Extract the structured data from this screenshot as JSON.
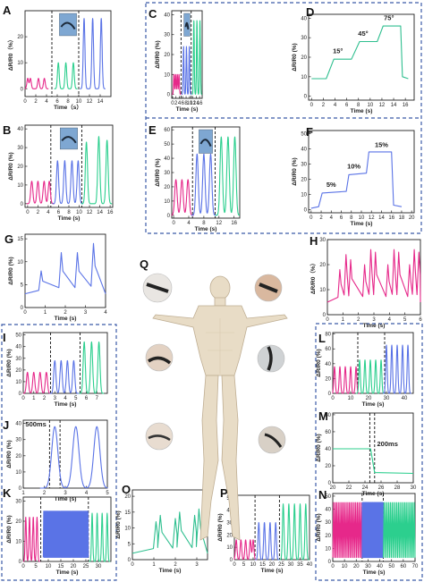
{
  "colors": {
    "pink": "#e6288a",
    "green": "#2ccf8e",
    "blue": "#5a73e6",
    "teal": "#2fbf8f",
    "border": "#3b5aa8"
  },
  "chart_data": [
    {
      "id": "A",
      "type": "line",
      "xlabel": "Time（s）",
      "ylabel": "ΔR/R0（%）",
      "xlim": [
        0,
        16
      ],
      "ylim": [
        -3,
        30
      ],
      "xticks": [
        0,
        2,
        4,
        6,
        8,
        10,
        12,
        14
      ],
      "yticks": [
        0,
        10,
        20
      ],
      "dividers": [
        5,
        10
      ],
      "inset": true,
      "series": [
        {
          "color": "#e6288a",
          "x": [
            0.5,
            1.0,
            2.5,
            3.6
          ],
          "y": [
            4,
            4,
            4,
            4
          ]
        },
        {
          "color": "#2ccf8e",
          "x": [
            6.2,
            7.6,
            9.0
          ],
          "y": [
            10,
            10,
            10
          ]
        },
        {
          "color": "#5a73e6",
          "x": [
            11.0,
            12.6,
            14.2
          ],
          "y": [
            27,
            27,
            27
          ]
        }
      ]
    },
    {
      "id": "B",
      "type": "line",
      "xlabel": "Time (s)",
      "ylabel": "ΔR/R0 (%)",
      "xlim": [
        -0.5,
        16.5
      ],
      "ylim": [
        -2,
        42
      ],
      "xticks": [
        0,
        2,
        4,
        6,
        8,
        10,
        12,
        14,
        16
      ],
      "yticks": [
        0,
        10,
        20,
        30,
        40
      ],
      "dividers": [
        4.5,
        10.5
      ],
      "inset": true,
      "series": [
        {
          "color": "#e6288a",
          "x": [
            0.8,
            2.0,
            3.2,
            4.2
          ],
          "y": [
            12,
            12,
            12,
            12
          ]
        },
        {
          "color": "#5a73e6",
          "x": [
            5.8,
            7.2,
            8.6,
            9.8
          ],
          "y": [
            23,
            23,
            23,
            23
          ]
        },
        {
          "color": "#2ccf8e",
          "x": [
            11.4,
            13.8,
            15.4
          ],
          "y": [
            33,
            36,
            34
          ]
        }
      ]
    },
    {
      "id": "C",
      "type": "line",
      "xlabel": "Time (s)",
      "ylabel": "ΔR/R0 (%)",
      "xlim": [
        -0.5,
        17.5
      ],
      "ylim": [
        -2,
        42
      ],
      "xticks": [
        0,
        2,
        4,
        6,
        8,
        10,
        12,
        14,
        16
      ],
      "yticks": [
        0,
        10,
        20,
        30,
        40
      ],
      "dividers": [
        5,
        11
      ],
      "inset": true,
      "series": [
        {
          "color": "#e6288a",
          "x": [
            0.8,
            1.8,
            2.8,
            3.8
          ],
          "y": [
            10,
            10,
            10,
            10
          ]
        },
        {
          "color": "#5a73e6",
          "x": [
            6.5,
            8.2,
            9.9
          ],
          "y": [
            24,
            24,
            24
          ]
        },
        {
          "color": "#2ccf8e",
          "x": [
            12.6,
            14.4,
            16.2
          ],
          "y": [
            37,
            37,
            37
          ]
        }
      ]
    },
    {
      "id": "D",
      "type": "line",
      "xlabel": "Time (s)",
      "ylabel": "ΔR/R0 (%)",
      "xlim": [
        -0.5,
        17.5
      ],
      "ylim": [
        -2,
        42
      ],
      "xticks": [
        0,
        2,
        4,
        6,
        8,
        10,
        12,
        14,
        16
      ],
      "yticks": [
        0,
        10,
        20,
        30,
        40
      ],
      "annotations": [
        "15°",
        "45°",
        "75°"
      ],
      "series": [
        {
          "color": "#2fbf8f",
          "x": [
            0,
            2.5,
            3.8,
            6.8,
            8.2,
            11.2,
            12.2,
            15.2,
            15.5,
            16.5
          ],
          "y": [
            9,
            9,
            19,
            19,
            28,
            28,
            36,
            36,
            10,
            9
          ]
        }
      ]
    },
    {
      "id": "E",
      "type": "line",
      "xlabel": "Time (s)",
      "ylabel": "ΔR/R0 (%)",
      "xlim": [
        -0.5,
        17.5
      ],
      "ylim": [
        -2,
        62
      ],
      "xticks": [
        0,
        4,
        8,
        12,
        16
      ],
      "yticks": [
        0,
        10,
        20,
        30,
        40,
        50,
        60
      ],
      "dividers": [
        5,
        11
      ],
      "inset": true,
      "series": [
        {
          "color": "#e6288a",
          "x": [
            0.6,
            2.2,
            3.8
          ],
          "y": [
            25,
            25,
            25
          ]
        },
        {
          "color": "#5a73e6",
          "x": [
            6.2,
            8.0,
            9.8
          ],
          "y": [
            43,
            43,
            43
          ]
        },
        {
          "color": "#2ccf8e",
          "x": [
            12.6,
            14.4,
            16.2
          ],
          "y": [
            55,
            55,
            55
          ]
        }
      ]
    },
    {
      "id": "F",
      "type": "line",
      "xlabel": "Time (s)",
      "ylabel": "ΔR/R0 (%)",
      "xlim": [
        -0.5,
        20.5
      ],
      "ylim": [
        -2,
        52
      ],
      "xticks": [
        0,
        2,
        4,
        6,
        8,
        10,
        12,
        14,
        16,
        18,
        20
      ],
      "yticks": [
        0,
        10,
        20,
        30,
        40,
        50
      ],
      "annotations": [
        "5%",
        "10%",
        "15%"
      ],
      "series": [
        {
          "color": "#5a73e6",
          "x": [
            0,
            1.5,
            2.2,
            7,
            7.5,
            11,
            11.5,
            16,
            16.4,
            18
          ],
          "y": [
            1,
            2,
            11,
            12,
            23,
            24,
            38,
            38,
            3,
            2
          ]
        }
      ]
    },
    {
      "id": "G",
      "type": "line",
      "xlabel": "Time (s)",
      "ylabel": "ΔR/R0 (%)",
      "xlim": [
        0,
        4
      ],
      "ylim": [
        0,
        16
      ],
      "xticks": [
        0,
        1,
        2,
        3,
        4
      ],
      "yticks": [
        0,
        5,
        10,
        15
      ],
      "series": [
        {
          "color": "#5a73e6",
          "x": [
            0.8,
            1.8,
            2.6,
            3.4
          ],
          "y": [
            8,
            12,
            12,
            14
          ]
        }
      ]
    },
    {
      "id": "H",
      "type": "line",
      "xlabel": "Time (s)",
      "ylabel": "ΔR/R0（%）",
      "xlim": [
        0,
        6
      ],
      "ylim": [
        0,
        30
      ],
      "xticks": [
        0,
        1,
        2,
        3,
        4,
        5,
        6
      ],
      "yticks": [
        0,
        10,
        20,
        30
      ],
      "series": [
        {
          "color": "#e6288a",
          "x": [
            0.8,
            1.2,
            1.5,
            2.4,
            2.8,
            3.1,
            3.9,
            4.3,
            4.6,
            5.3,
            5.6,
            5.9
          ],
          "y": [
            18,
            24,
            22,
            20,
            26,
            25,
            20,
            26,
            25,
            20,
            26,
            25
          ]
        }
      ]
    },
    {
      "id": "I",
      "type": "line",
      "xlabel": "Time (s)",
      "ylabel": "ΔR/R0 (%)",
      "xlim": [
        0,
        8
      ],
      "ylim": [
        0,
        52
      ],
      "xticks": [
        0,
        1,
        2,
        3,
        4,
        5,
        6,
        7
      ],
      "yticks": [
        0,
        10,
        20,
        30,
        40,
        50
      ],
      "dividers": [
        2.6,
        5.4
      ],
      "series": [
        {
          "color": "#e6288a",
          "x": [
            0.4,
            1.0,
            1.6,
            2.2
          ],
          "y": [
            18,
            18,
            18,
            18
          ]
        },
        {
          "color": "#5a73e6",
          "x": [
            3.0,
            3.6,
            4.2,
            4.8
          ],
          "y": [
            28,
            28,
            28,
            28
          ]
        },
        {
          "color": "#2ccf8e",
          "x": [
            5.8,
            6.5,
            7.2
          ],
          "y": [
            44,
            44,
            44
          ]
        }
      ]
    },
    {
      "id": "J",
      "type": "line",
      "xlabel": "Time (s)",
      "ylabel": "ΔR/R0 (%)",
      "xlim": [
        1,
        5
      ],
      "ylim": [
        0,
        42
      ],
      "xticks": [
        1,
        2,
        3,
        4,
        5
      ],
      "yticks": [
        0,
        10,
        20,
        30,
        40
      ],
      "dividers": [
        2.25,
        2.75
      ],
      "annotations": [
        "500ms"
      ],
      "series": [
        {
          "color": "#5a73e6",
          "x": [
            2.5,
            3.5,
            4.5
          ],
          "y": [
            38,
            38,
            38
          ]
        }
      ]
    },
    {
      "id": "K",
      "type": "line",
      "xlabel": "Time (s)",
      "ylabel": "ΔR/R0 (%)",
      "xlim": [
        0,
        35
      ],
      "ylim": [
        0,
        32
      ],
      "xticks": [
        0,
        5,
        10,
        15,
        20,
        25,
        30
      ],
      "yticks": [
        0,
        10,
        20,
        30
      ],
      "dividers": [
        7,
        26
      ],
      "series": [
        {
          "color": "#e6288a",
          "x": [
            1,
            2.5,
            4,
            5.5
          ],
          "y": [
            22,
            22,
            22,
            22
          ]
        },
        {
          "color": "#5a73e6",
          "x": [
            8,
            26
          ],
          "y": [
            25,
            25
          ]
        },
        {
          "color": "#2ccf8e",
          "x": [
            27.5,
            29.5,
            31.5,
            33.5
          ],
          "y": [
            24,
            24,
            24,
            24
          ]
        }
      ]
    },
    {
      "id": "L",
      "type": "line",
      "xlabel": "Time (s)",
      "ylabel": "ΔR/R0 (%)",
      "xlim": [
        0,
        45
      ],
      "ylim": [
        0,
        82
      ],
      "xticks": [
        0,
        10,
        20,
        30,
        40
      ],
      "yticks": [
        0,
        20,
        40,
        60,
        80
      ],
      "dividers": [
        14,
        29
      ],
      "series": [
        {
          "color": "#e6288a",
          "x": [
            1,
            4,
            7,
            10,
            13
          ],
          "y": [
            36,
            36,
            36,
            36,
            36
          ]
        },
        {
          "color": "#2ccf8e",
          "x": [
            15,
            18,
            21,
            24,
            27
          ],
          "y": [
            45,
            45,
            45,
            45,
            45
          ]
        },
        {
          "color": "#5a73e6",
          "x": [
            30,
            33,
            36,
            39,
            42
          ],
          "y": [
            65,
            65,
            65,
            65,
            65
          ]
        }
      ]
    },
    {
      "id": "M",
      "type": "line",
      "xlabel": "Time (s)",
      "ylabel": "ΔR/R0 (%)",
      "xlim": [
        20,
        30
      ],
      "ylim": [
        0,
        82
      ],
      "xticks": [
        20,
        22,
        24,
        26,
        28,
        30
      ],
      "yticks": [
        0,
        20,
        40,
        60,
        80
      ],
      "dividers": [
        24.6,
        25.2
      ],
      "annotations": [
        "200ms"
      ],
      "series": [
        {
          "color": "#2ccf8e",
          "x": [
            20,
            24.7,
            25.2,
            30
          ],
          "y": [
            40,
            40,
            12,
            11
          ]
        }
      ]
    },
    {
      "id": "N",
      "type": "line",
      "xlabel": "Time (s)",
      "ylabel": "ΔR/R0 (%)",
      "xlim": [
        0,
        70
      ],
      "ylim": [
        0,
        52
      ],
      "xticks": [
        0,
        10,
        20,
        30,
        40,
        50,
        60,
        70
      ],
      "yticks": [
        0,
        10,
        20,
        30,
        40,
        50
      ],
      "dividers": [
        25,
        43
      ],
      "series": [
        {
          "color": "#e6288a",
          "x": [
            0,
            25
          ],
          "y": [
            45,
            45
          ]
        },
        {
          "color": "#5a73e6",
          "x": [
            25,
            43
          ],
          "y": [
            45,
            45
          ]
        },
        {
          "color": "#2ccf8e",
          "x": [
            43,
            70
          ],
          "y": [
            45,
            45
          ]
        }
      ]
    },
    {
      "id": "O",
      "type": "line",
      "xlabel": "Time (s)",
      "ylabel": "ΔR/R0 (%)",
      "xlim": [
        0,
        3.5
      ],
      "ylim": [
        0,
        22
      ],
      "xticks": [
        0,
        1,
        2,
        3
      ],
      "yticks": [
        0,
        5,
        10,
        15,
        20
      ],
      "series": [
        {
          "color": "#2fbf8f",
          "x": [
            1.1,
            1.3,
            2.0,
            2.2,
            2.9,
            3.1
          ],
          "y": [
            12,
            14,
            13,
            15,
            14,
            16
          ]
        }
      ]
    },
    {
      "id": "P",
      "type": "line",
      "xlabel": "Time (s)",
      "ylabel": "ΔR/R0 (%)",
      "xlim": [
        0,
        40
      ],
      "ylim": [
        0,
        52
      ],
      "xticks": [
        0,
        5,
        10,
        15,
        20,
        25,
        30,
        35,
        40
      ],
      "yticks": [
        0,
        10,
        20,
        30,
        40,
        50
      ],
      "dividers": [
        11,
        24
      ],
      "series": [
        {
          "color": "#e6288a",
          "x": [
            1,
            3.5,
            6,
            8.5,
            10
          ],
          "y": [
            16,
            16,
            16,
            16,
            16
          ]
        },
        {
          "color": "#5a73e6",
          "x": [
            13,
            16,
            19,
            22
          ],
          "y": [
            30,
            30,
            30,
            30
          ]
        },
        {
          "color": "#2ccf8e",
          "x": [
            26,
            29,
            32,
            35,
            38
          ],
          "y": [
            45,
            45,
            45,
            45,
            45
          ]
        }
      ]
    }
  ],
  "labels": {
    "Q": "Q"
  }
}
